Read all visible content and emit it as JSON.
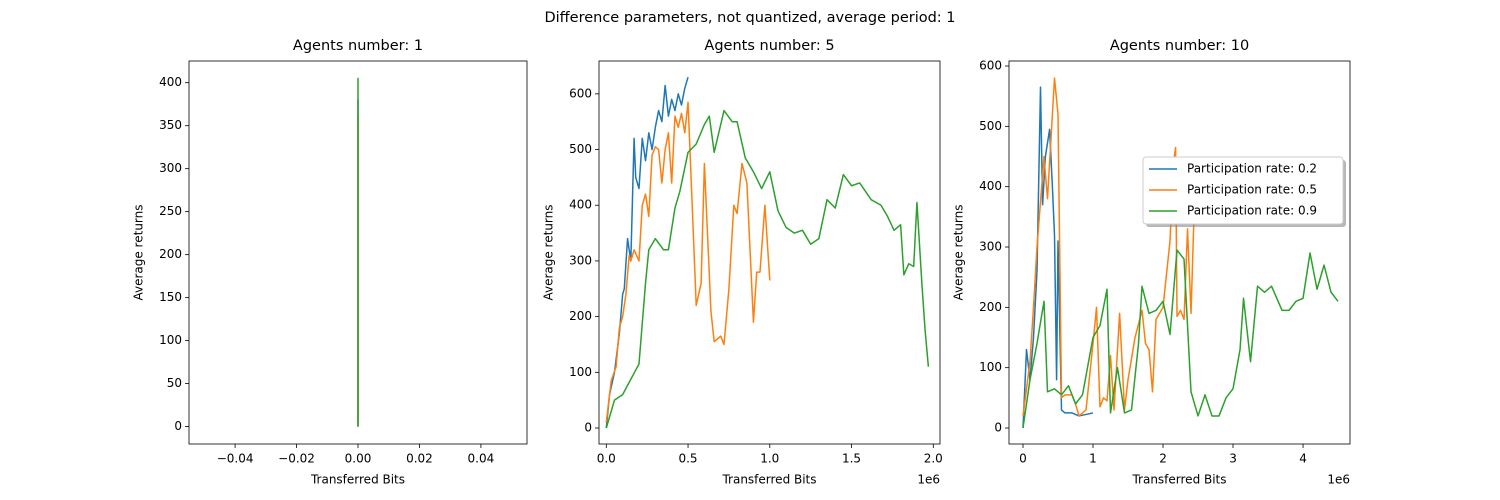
{
  "title": "Difference parameters, not quantized, average period: 1",
  "chart_data": [
    {
      "type": "line",
      "title": "Agents number: 1",
      "x_label": "Transferred Bits",
      "y_label": "Average returns",
      "xlim": [
        -0.055,
        0.055
      ],
      "xticks": [
        {
          "value": -0.04,
          "label": "−0.04"
        },
        {
          "value": -0.02,
          "label": "−0.02"
        },
        {
          "value": 0,
          "label": "0.00"
        },
        {
          "value": 0.02,
          "label": "0.02"
        },
        {
          "value": 0.04,
          "label": "0.04"
        }
      ],
      "ylim": [
        -20.25,
        425.25
      ],
      "yticks": [
        0,
        50,
        100,
        150,
        200,
        250,
        300,
        350,
        400
      ],
      "series": [
        {
          "color": "#1f77b4",
          "x": [
            0,
            0,
            0
          ],
          "values": [
            0,
            380,
            100
          ]
        },
        {
          "color": "#ff7f0e",
          "x": [
            0,
            0,
            0
          ],
          "values": [
            0,
            360,
            150
          ]
        },
        {
          "color": "#2ca02c",
          "x": [
            0,
            0,
            0,
            0
          ],
          "values": [
            0,
            405,
            60,
            340
          ]
        }
      ]
    },
    {
      "type": "line",
      "title": "Agents number: 5",
      "x_label": "Transferred Bits",
      "y_label": "Average returns",
      "x_offset_label": "1e6",
      "xlim": [
        -44600,
        2041000
      ],
      "xticks": [
        {
          "value": 0,
          "label": "0.0"
        },
        {
          "value": 500000,
          "label": "0.5"
        },
        {
          "value": 1000000,
          "label": "1.0"
        },
        {
          "value": 1500000,
          "label": "1.5"
        },
        {
          "value": 2000000,
          "label": "2.0"
        }
      ],
      "ylim": [
        -28.7,
        659
      ],
      "yticks": [
        0,
        100,
        200,
        300,
        400,
        500,
        600
      ],
      "series": [
        {
          "color": "#1f77b4",
          "x": [
            0,
            20000,
            50000,
            80000,
            100000,
            110000,
            130000,
            150000,
            170000,
            180000,
            200000,
            220000,
            240000,
            260000,
            280000,
            300000,
            320000,
            340000,
            360000,
            380000,
            400000,
            420000,
            440000,
            460000,
            480000,
            500000
          ],
          "values": [
            0,
            60,
            100,
            170,
            240,
            250,
            340,
            300,
            520,
            450,
            430,
            520,
            480,
            530,
            500,
            540,
            570,
            550,
            615,
            560,
            590,
            570,
            600,
            580,
            610,
            630
          ]
        },
        {
          "color": "#ff7f0e",
          "x": [
            0,
            30000,
            60000,
            80000,
            100000,
            120000,
            140000,
            150000,
            170000,
            200000,
            220000,
            240000,
            260000,
            280000,
            300000,
            320000,
            340000,
            360000,
            380000,
            400000,
            420000,
            440000,
            460000,
            480000,
            500000,
            550000,
            580000,
            600000,
            640000,
            660000,
            700000,
            720000,
            750000,
            780000,
            800000,
            830000,
            860000,
            900000,
            920000,
            940000,
            970000,
            1000000
          ],
          "values": [
            10,
            85,
            110,
            180,
            200,
            240,
            310,
            300,
            320,
            300,
            400,
            420,
            380,
            490,
            505,
            500,
            440,
            500,
            530,
            440,
            560,
            540,
            565,
            530,
            585,
            220,
            260,
            475,
            210,
            155,
            165,
            150,
            250,
            400,
            385,
            475,
            440,
            190,
            280,
            280,
            400,
            265
          ]
        },
        {
          "color": "#2ca02c",
          "x": [
            0,
            50000,
            100000,
            200000,
            240000,
            260000,
            300000,
            350000,
            380000,
            420000,
            450000,
            500000,
            550000,
            600000,
            630000,
            660000,
            720000,
            770000,
            800000,
            850000,
            900000,
            950000,
            1000000,
            1050000,
            1100000,
            1150000,
            1200000,
            1250000,
            1300000,
            1350000,
            1400000,
            1450000,
            1500000,
            1550000,
            1620000,
            1680000,
            1720000,
            1760000,
            1800000,
            1820000,
            1850000,
            1880000,
            1900000,
            1930000,
            1950000,
            1970000
          ],
          "values": [
            0,
            50,
            60,
            115,
            260,
            320,
            340,
            320,
            320,
            395,
            425,
            495,
            510,
            545,
            560,
            495,
            570,
            550,
            550,
            485,
            460,
            430,
            460,
            390,
            360,
            350,
            355,
            330,
            340,
            410,
            395,
            455,
            435,
            440,
            410,
            400,
            380,
            355,
            365,
            275,
            295,
            290,
            405,
            260,
            175,
            110
          ]
        }
      ]
    },
    {
      "type": "line",
      "title": "Agents number: 10",
      "x_label": "Transferred Bits",
      "y_label": "Average returns",
      "x_offset_label": "1e6",
      "legend": "center right",
      "xlim": [
        -200000,
        4671000
      ],
      "xticks": [
        0,
        1000000,
        2000000,
        3000000,
        4000000
      ],
      "xtick_labels": [
        "0",
        "1",
        "2",
        "3",
        "4"
      ],
      "ylim": [
        -26.5,
        608.3
      ],
      "yticks": [
        0,
        100,
        200,
        300,
        400,
        500,
        600
      ],
      "series": [
        {
          "name": "Participation rate: 0.2",
          "color": "#1f77b4",
          "x": [
            0,
            50000,
            100000,
            150000,
            200000,
            250000,
            280000,
            320000,
            380000,
            420000,
            450000,
            480000,
            500000,
            550000,
            600000,
            700000,
            800000,
            1000000
          ],
          "values": [
            0,
            130,
            80,
            150,
            260,
            565,
            370,
            450,
            495,
            400,
            320,
            80,
            310,
            30,
            25,
            25,
            20,
            25
          ]
        },
        {
          "name": "Participation rate: 0.5",
          "color": "#ff7f0e",
          "x": [
            0,
            100000,
            150000,
            200000,
            300000,
            350000,
            450000,
            500000,
            550000,
            600000,
            700000,
            750000,
            800000,
            900000,
            1000000,
            1050000,
            1100000,
            1150000,
            1200000,
            1250000,
            1300000,
            1380000,
            1450000,
            1500000,
            1600000,
            1700000,
            1750000,
            1800000,
            1850000,
            1900000,
            1950000,
            2000000,
            2100000,
            2150000,
            2180000,
            2200000,
            2250000,
            2300000,
            2350000,
            2400000,
            2450000
          ],
          "values": [
            20,
            110,
            200,
            300,
            450,
            380,
            580,
            520,
            50,
            55,
            55,
            40,
            20,
            30,
            140,
            200,
            35,
            50,
            45,
            120,
            30,
            190,
            30,
            80,
            150,
            195,
            140,
            130,
            60,
            180,
            190,
            200,
            310,
            440,
            465,
            185,
            195,
            180,
            330,
            190,
            380
          ]
        },
        {
          "name": "Participation rate: 0.9",
          "color": "#2ca02c",
          "x": [
            0,
            100000,
            200000,
            300000,
            350000,
            450000,
            550000,
            650000,
            750000,
            850000,
            1000000,
            1100000,
            1200000,
            1250000,
            1350000,
            1450000,
            1550000,
            1650000,
            1700000,
            1800000,
            1900000,
            2000000,
            2100000,
            2200000,
            2300000,
            2400000,
            2500000,
            2600000,
            2700000,
            2800000,
            2900000,
            3000000,
            3100000,
            3150000,
            3250000,
            3350000,
            3450000,
            3550000,
            3700000,
            3800000,
            3900000,
            4000000,
            4100000,
            4200000,
            4300000,
            4400000,
            4500000
          ],
          "values": [
            0,
            80,
            140,
            210,
            60,
            65,
            55,
            70,
            40,
            55,
            150,
            170,
            230,
            25,
            100,
            25,
            30,
            140,
            235,
            190,
            195,
            210,
            155,
            295,
            280,
            60,
            20,
            55,
            20,
            20,
            50,
            65,
            130,
            215,
            110,
            235,
            225,
            235,
            195,
            195,
            210,
            215,
            290,
            230,
            270,
            225,
            210
          ]
        }
      ]
    }
  ]
}
